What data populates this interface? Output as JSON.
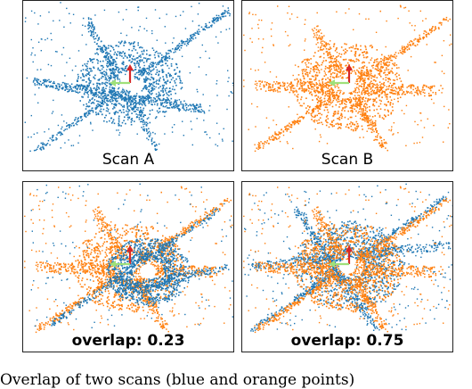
{
  "colors": {
    "scan_a": "#1f77b4",
    "scan_b": "#ff7f0e",
    "arrow_up": "#d62728",
    "arrow_left": "#9fe07a"
  },
  "panels": [
    {
      "id": "p-a",
      "caption": "Scan A",
      "bold": false,
      "layers": [
        "a"
      ]
    },
    {
      "id": "p-b",
      "caption": "Scan B",
      "bold": false,
      "layers": [
        "b"
      ]
    },
    {
      "id": "p-c",
      "caption": "overlap: 0.23",
      "bold": true,
      "layers": [
        "b",
        "a2"
      ]
    },
    {
      "id": "p-d",
      "caption": "overlap: 0.75",
      "bold": true,
      "layers": [
        "a3",
        "b"
      ]
    }
  ],
  "figure_caption": "Overlap of two scans (blue and orange points)"
}
